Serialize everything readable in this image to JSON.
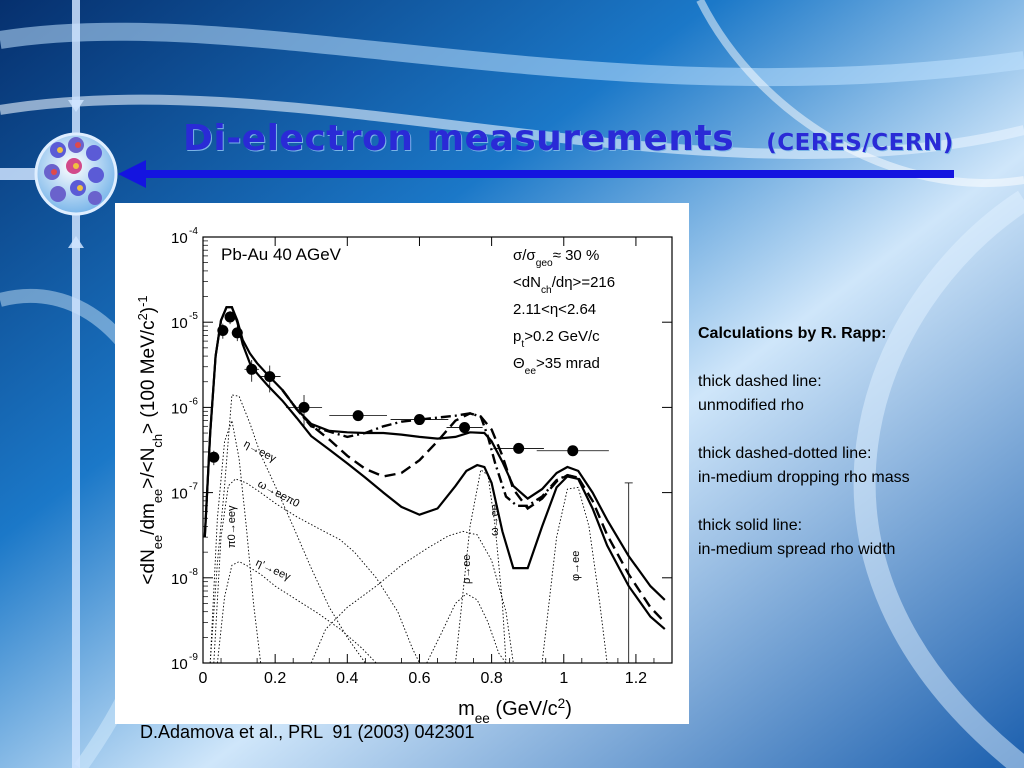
{
  "slide": {
    "title": "Di-electron measurements",
    "title_sub": "(CERES/CERN)",
    "caption": "D.Adamova et al., PRL  91 (2003) 042301",
    "accent": "#2a2ad6",
    "arrow_color": "#1414e0"
  },
  "notes": {
    "heading": "Calculations by R. Rapp:",
    "blocks": [
      {
        "line1": "thick dashed line:",
        "line2": "unmodified rho"
      },
      {
        "line1": "thick dashed-dotted line:",
        "line2": "in-medium dropping rho mass"
      },
      {
        "line1": "thick solid line:",
        "line2": "in-medium spread rho width"
      }
    ]
  },
  "chart_data": {
    "type": "scatter",
    "log_y": true,
    "xlim": [
      0,
      1.3
    ],
    "ylim": [
      1e-09,
      0.0001
    ],
    "x_ticks": [
      "0",
      "0.2",
      "0.4",
      "0.6",
      "0.8",
      "1",
      "1.2"
    ],
    "x_tick_values": [
      0,
      0.2,
      0.4,
      0.6,
      0.8,
      1.0,
      1.2
    ],
    "y_ticks": [
      {
        "value": 0.0001,
        "base": "10",
        "exp": "-4"
      },
      {
        "value": 1e-05,
        "base": "10",
        "exp": "-5"
      },
      {
        "value": 1e-06,
        "base": "10",
        "exp": "-6"
      },
      {
        "value": 1e-07,
        "base": "10",
        "exp": "-7"
      },
      {
        "value": 1e-08,
        "base": "10",
        "exp": "-8"
      },
      {
        "value": 1e-09,
        "base": "10",
        "exp": "-9"
      }
    ],
    "xlabel": "m_ee (GeV/c^2)",
    "ylabel": "<dN_ee/dm_ee>/<N_ch> (100 MeV/c^2)^-1",
    "annotation_system": "Pb-Au 40 AGeV",
    "annotations_cuts": [
      "σ/σ_geo ≈ 30 %",
      "<dN_ch/dη>=216",
      "2.11<η<2.64",
      "p_t>0.2 GeV/c",
      "Θ_ee>35 mrad"
    ],
    "decay_labels": [
      "η→eeγ",
      "ω→eeπ0",
      "π0→eeγ",
      "η'→eeγ",
      "ρ→ee",
      "ω→ee",
      "φ→ee"
    ],
    "data_points": [
      {
        "x": 0.03,
        "y": 2.6e-07,
        "xerr": 0.015,
        "yerr": 5e-08
      },
      {
        "x": 0.055,
        "y": 8e-06,
        "xerr": 0.015,
        "yerr": 1.6e-06
      },
      {
        "x": 0.075,
        "y": 1.15e-05,
        "xerr": 0.015,
        "yerr": 2e-06
      },
      {
        "x": 0.095,
        "y": 7.5e-06,
        "xerr": 0.015,
        "yerr": 1.5e-06
      },
      {
        "x": 0.135,
        "y": 2.8e-06,
        "xerr": 0.02,
        "yerr": 8e-07
      },
      {
        "x": 0.185,
        "y": 2.3e-06,
        "xerr": 0.03,
        "yerr": 8e-07
      },
      {
        "x": 0.28,
        "y": 1e-06,
        "xerr": 0.05,
        "yerr": 4e-07
      },
      {
        "x": 0.43,
        "y": 8e-07,
        "xerr": 0.08,
        "yerr": 3e-08
      },
      {
        "x": 0.6,
        "y": 7.2e-07,
        "xerr": 0.08,
        "yerr": 2.5e-08
      },
      {
        "x": 0.725,
        "y": 5.8e-07,
        "xerr": 0.05,
        "yerr": 1.5e-08
      },
      {
        "x": 0.875,
        "y": 3.3e-07,
        "xerr": 0.07,
        "yerr": 1.2e-08
      },
      {
        "x": 1.025,
        "y": 3.1e-07,
        "xerr": 0.1,
        "yerr": 1e-08
      }
    ],
    "upper_limit": {
      "x": 1.18,
      "y_low": 1e-09,
      "y_high": 1.3e-07
    },
    "series": [
      {
        "style": "thick-solid",
        "points": [
          [
            0.005,
            3e-08
          ],
          [
            0.02,
            5e-07
          ],
          [
            0.035,
            4e-06
          ],
          [
            0.05,
            1.05e-05
          ],
          [
            0.065,
            1.5e-05
          ],
          [
            0.08,
            1.5e-05
          ],
          [
            0.095,
            1e-05
          ],
          [
            0.11,
            5.5e-06
          ],
          [
            0.13,
            3.3e-06
          ],
          [
            0.15,
            2.5e-06
          ],
          [
            0.18,
            1.8e-06
          ],
          [
            0.22,
            1.2e-06
          ],
          [
            0.26,
            7.5e-07
          ],
          [
            0.3,
            4.6e-07
          ],
          [
            0.35,
            3.2e-07
          ],
          [
            0.4,
            2.2e-07
          ],
          [
            0.45,
            1.5e-07
          ],
          [
            0.5,
            1e-07
          ],
          [
            0.55,
            6.8e-08
          ],
          [
            0.6,
            5.5e-08
          ],
          [
            0.65,
            6.5e-08
          ],
          [
            0.7,
            1.2e-07
          ],
          [
            0.73,
            1.8e-07
          ],
          [
            0.76,
            2.1e-07
          ],
          [
            0.78,
            2e-07
          ],
          [
            0.8,
            1.3e-07
          ],
          [
            0.83,
            3.5e-08
          ],
          [
            0.86,
            1.3e-08
          ],
          [
            0.9,
            1.3e-08
          ],
          [
            0.94,
            4e-08
          ],
          [
            0.98,
            1.15e-07
          ],
          [
            1.01,
            1.55e-07
          ],
          [
            1.04,
            1.45e-07
          ],
          [
            1.08,
            6.5e-08
          ],
          [
            1.12,
            2.4e-08
          ],
          [
            1.18,
            8e-09
          ],
          [
            1.24,
            3.5e-09
          ],
          [
            1.28,
            2.5e-09
          ]
        ]
      },
      {
        "style": "thick-solid",
        "points": [
          [
            0.005,
            3e-08
          ],
          [
            0.02,
            5e-07
          ],
          [
            0.035,
            4e-06
          ],
          [
            0.05,
            1.05e-05
          ],
          [
            0.065,
            1.5e-05
          ],
          [
            0.08,
            1.5e-05
          ],
          [
            0.095,
            1.05e-05
          ],
          [
            0.11,
            6.2e-06
          ],
          [
            0.13,
            4.3e-06
          ],
          [
            0.15,
            3.3e-06
          ],
          [
            0.18,
            2.4e-06
          ],
          [
            0.22,
            1.6e-06
          ],
          [
            0.26,
            9.5e-07
          ],
          [
            0.3,
            6.4e-07
          ],
          [
            0.35,
            5.3e-07
          ],
          [
            0.4,
            5.1e-07
          ],
          [
            0.45,
            5e-07
          ],
          [
            0.5,
            5e-07
          ],
          [
            0.55,
            4.8e-07
          ],
          [
            0.6,
            4.5e-07
          ],
          [
            0.65,
            4.3e-07
          ],
          [
            0.7,
            4.5e-07
          ],
          [
            0.74,
            5.1e-07
          ],
          [
            0.78,
            5e-07
          ],
          [
            0.8,
            4e-07
          ],
          [
            0.83,
            2.3e-07
          ],
          [
            0.86,
            1.2e-07
          ],
          [
            0.9,
            8.5e-08
          ],
          [
            0.94,
            1.1e-07
          ],
          [
            0.98,
            1.7e-07
          ],
          [
            1.01,
            2e-07
          ],
          [
            1.04,
            1.8e-07
          ],
          [
            1.08,
            1e-07
          ],
          [
            1.12,
            4.8e-08
          ],
          [
            1.18,
            1.8e-08
          ],
          [
            1.24,
            8e-09
          ],
          [
            1.28,
            5.5e-09
          ]
        ]
      },
      {
        "style": "thick-dashed",
        "points": [
          [
            0.22,
            1.6e-06
          ],
          [
            0.26,
            9.5e-07
          ],
          [
            0.3,
            6.2e-07
          ],
          [
            0.35,
            4.2e-07
          ],
          [
            0.4,
            2.7e-07
          ],
          [
            0.45,
            1.9e-07
          ],
          [
            0.5,
            1.55e-07
          ],
          [
            0.55,
            1.7e-07
          ],
          [
            0.6,
            2.4e-07
          ],
          [
            0.65,
            4e-07
          ],
          [
            0.7,
            7e-07
          ],
          [
            0.74,
            8.5e-07
          ],
          [
            0.77,
            7.8e-07
          ],
          [
            0.8,
            5.5e-07
          ],
          [
            0.83,
            2.7e-07
          ],
          [
            0.86,
            1.1e-07
          ],
          [
            0.9,
            6.5e-08
          ],
          [
            0.94,
            8.5e-08
          ],
          [
            0.98,
            1.35e-07
          ],
          [
            1.01,
            1.6e-07
          ],
          [
            1.04,
            1.5e-07
          ],
          [
            1.08,
            8e-08
          ],
          [
            1.12,
            3.2e-08
          ],
          [
            1.18,
            1.1e-08
          ],
          [
            1.24,
            4.5e-09
          ],
          [
            1.28,
            3e-09
          ]
        ]
      },
      {
        "style": "thick-dashdot",
        "points": [
          [
            0.22,
            1.6e-06
          ],
          [
            0.26,
            9.5e-07
          ],
          [
            0.3,
            6e-07
          ],
          [
            0.35,
            5.2e-07
          ],
          [
            0.4,
            4.5e-07
          ],
          [
            0.45,
            5e-07
          ],
          [
            0.5,
            6e-07
          ],
          [
            0.55,
            6.8e-07
          ],
          [
            0.6,
            7.2e-07
          ],
          [
            0.65,
            7.6e-07
          ],
          [
            0.7,
            8e-07
          ],
          [
            0.74,
            8.5e-07
          ],
          [
            0.77,
            7.8e-07
          ],
          [
            0.79,
            4.5e-07
          ],
          [
            0.81,
            2.2e-07
          ],
          [
            0.84,
            9e-08
          ],
          [
            0.87,
            7e-08
          ],
          [
            0.9,
            7e-08
          ],
          [
            0.94,
            9e-08
          ],
          [
            0.98,
            1.4e-07
          ],
          [
            1.01,
            1.6e-07
          ],
          [
            1.04,
            1.5e-07
          ]
        ]
      },
      {
        "style": "thin-dotted",
        "points": [
          [
            0.02,
            1e-09
          ],
          [
            0.04,
            1.5e-08
          ],
          [
            0.06,
            1.2e-07
          ],
          [
            0.08,
            1.4e-06
          ],
          [
            0.1,
            1.35e-06
          ],
          [
            0.13,
            6.5e-07
          ],
          [
            0.16,
            2.8e-07
          ],
          [
            0.2,
            1.2e-07
          ],
          [
            0.25,
            4e-08
          ],
          [
            0.3,
            1.3e-08
          ],
          [
            0.35,
            4.5e-09
          ],
          [
            0.4,
            2e-09
          ],
          [
            0.45,
            1e-09
          ]
        ]
      },
      {
        "style": "thin-dotted",
        "points": [
          [
            0.03,
            1e-09
          ],
          [
            0.05,
            3e-08
          ],
          [
            0.07,
            1.2e-07
          ],
          [
            0.09,
            1.45e-07
          ],
          [
            0.12,
            1.3e-07
          ],
          [
            0.16,
            1e-07
          ],
          [
            0.2,
            7.5e-08
          ],
          [
            0.26,
            5.2e-08
          ],
          [
            0.32,
            3.8e-08
          ],
          [
            0.38,
            2.8e-08
          ],
          [
            0.42,
            2e-08
          ],
          [
            0.48,
            1e-08
          ],
          [
            0.54,
            4e-09
          ],
          [
            0.58,
            1.5e-09
          ],
          [
            0.6,
            1e-09
          ]
        ]
      },
      {
        "style": "thin-dotted",
        "points": [
          [
            0.04,
            1e-09
          ],
          [
            0.06,
            6e-09
          ],
          [
            0.08,
            1.4e-08
          ],
          [
            0.1,
            1.55e-08
          ],
          [
            0.12,
            1.4e-08
          ],
          [
            0.16,
            1.1e-08
          ],
          [
            0.2,
            8e-09
          ],
          [
            0.26,
            5.5e-09
          ],
          [
            0.32,
            3.8e-09
          ],
          [
            0.38,
            2.5e-09
          ],
          [
            0.44,
            1.5e-09
          ],
          [
            0.48,
            1e-09
          ]
        ]
      },
      {
        "style": "thin-dotted",
        "points": [
          [
            0.02,
            1e-09
          ],
          [
            0.04,
            5e-08
          ],
          [
            0.06,
            4e-07
          ],
          [
            0.08,
            7e-07
          ],
          [
            0.1,
            2.5e-07
          ],
          [
            0.12,
            4e-08
          ],
          [
            0.14,
            5e-09
          ],
          [
            0.16,
            1e-09
          ]
        ]
      },
      {
        "style": "thin-dotted",
        "points": [
          [
            0.3,
            1e-09
          ],
          [
            0.34,
            2.5e-09
          ],
          [
            0.4,
            4.5e-09
          ],
          [
            0.48,
            8e-09
          ],
          [
            0.55,
            1.4e-08
          ],
          [
            0.62,
            2.2e-08
          ],
          [
            0.68,
            3.1e-08
          ],
          [
            0.72,
            3.5e-08
          ],
          [
            0.76,
            3.2e-08
          ],
          [
            0.8,
            1.6e-08
          ],
          [
            0.84,
            4e-09
          ],
          [
            0.86,
            1e-09
          ]
        ]
      },
      {
        "style": "thin-dotted",
        "points": [
          [
            0.62,
            1e-09
          ],
          [
            0.66,
            2.2e-09
          ],
          [
            0.7,
            5e-09
          ],
          [
            0.73,
            6.5e-09
          ],
          [
            0.76,
            5.5e-09
          ],
          [
            0.79,
            3e-09
          ],
          [
            0.82,
            1.3e-09
          ],
          [
            0.84,
            1e-09
          ]
        ]
      },
      {
        "style": "thin-dotted",
        "points": [
          [
            0.7,
            1e-09
          ],
          [
            0.74,
            4e-08
          ],
          [
            0.77,
            1.85e-07
          ],
          [
            0.79,
            1.6e-07
          ],
          [
            0.81,
            4e-08
          ],
          [
            0.83,
            5e-09
          ],
          [
            0.84,
            1e-09
          ]
        ]
      },
      {
        "style": "thin-dotted",
        "points": [
          [
            0.94,
            1e-09
          ],
          [
            0.98,
            3e-08
          ],
          [
            1.01,
            1.1e-07
          ],
          [
            1.04,
            1.15e-07
          ],
          [
            1.07,
            4e-08
          ],
          [
            1.1,
            5e-09
          ],
          [
            1.12,
            1e-09
          ]
        ]
      }
    ]
  }
}
